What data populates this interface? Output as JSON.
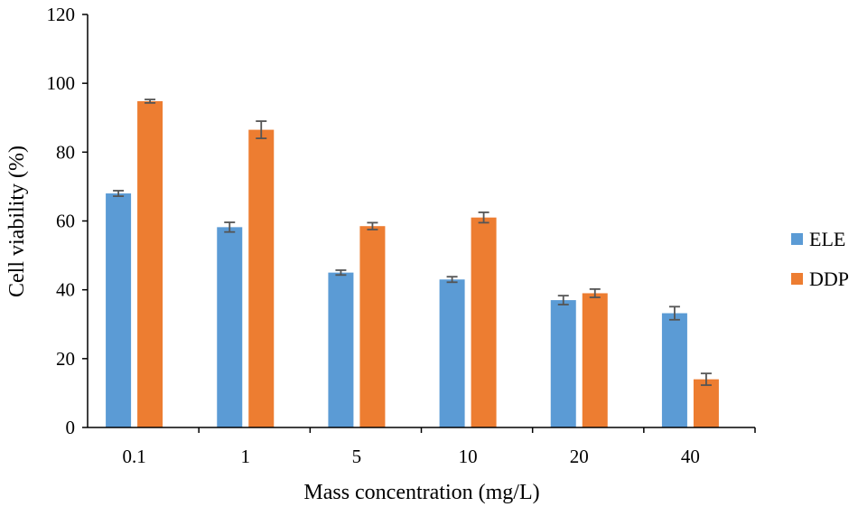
{
  "chart_data": {
    "type": "bar",
    "title": "",
    "xlabel": "Mass concentration (mg/L)",
    "ylabel": "Cell viability (%)",
    "categories": [
      "0.1",
      "1",
      "5",
      "10",
      "20",
      "40"
    ],
    "ylim": [
      0,
      120
    ],
    "yticks": [
      0,
      20,
      40,
      60,
      80,
      100,
      120
    ],
    "grid": false,
    "legend_position": "right",
    "series": [
      {
        "name": "ELE",
        "color": "#5b9bd5",
        "values": [
          68,
          58.2,
          45,
          43,
          37,
          33.2
        ],
        "errors": [
          0.8,
          1.4,
          0.7,
          0.8,
          1.3,
          1.9
        ]
      },
      {
        "name": "DDP",
        "color": "#ed7d31",
        "values": [
          94.8,
          86.5,
          58.5,
          61,
          39,
          14
        ],
        "errors": [
          0.5,
          2.5,
          1.0,
          1.5,
          1.2,
          1.7
        ]
      }
    ]
  }
}
